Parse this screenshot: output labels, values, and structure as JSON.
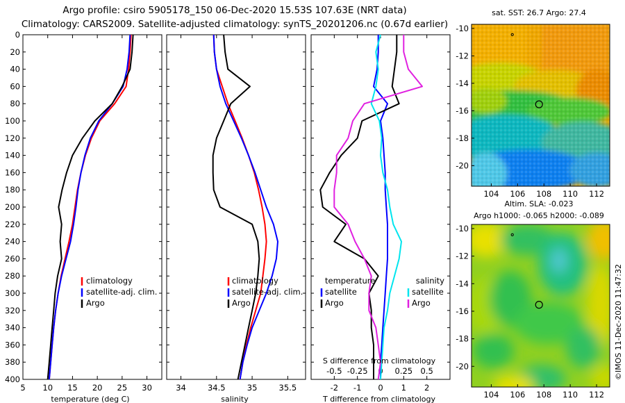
{
  "header": {
    "title_line1": "Argo profile: csiro 5905178_150 06-Dec-2020 15.53S 107.63E (NRT data)",
    "title_line2": "Climatology: CARS2009. Satellite-adjusted climatology: synTS_20201206.nc (0.67d earlier)"
  },
  "footer": {
    "credit": "©IMOS 11-Dec-2020 11:47:32"
  },
  "colors": {
    "climatology": "#ff0000",
    "satellite": "#0000ff",
    "argo": "#000000",
    "sat_salinity": "#00e5ee",
    "argo_salinity": "#e020e0"
  },
  "chart_data": [
    {
      "type": "line",
      "name": "temperature-profile",
      "xlabel": "temperature (deg C)",
      "xlim": [
        5,
        33
      ],
      "ylim": [
        400,
        0
      ],
      "xticks": [
        "5",
        "10",
        "15",
        "20",
        "25",
        "30"
      ],
      "yticks": [
        "0",
        "20",
        "40",
        "60",
        "80",
        "100",
        "120",
        "140",
        "160",
        "180",
        "200",
        "220",
        "240",
        "260",
        "280",
        "300",
        "320",
        "340",
        "360",
        "380",
        "400"
      ],
      "legend": [
        "climatology",
        "satellite-adj. clim.",
        "Argo"
      ],
      "depth": [
        0,
        20,
        40,
        60,
        80,
        100,
        120,
        140,
        160,
        180,
        200,
        220,
        240,
        260,
        280,
        300,
        320,
        340,
        360,
        380,
        400
      ],
      "series": [
        {
          "name": "climatology",
          "color": "#ff0000",
          "values": [
            26.8,
            26.6,
            26.3,
            25.8,
            23.5,
            20.5,
            18.8,
            17.6,
            16.7,
            16.0,
            15.5,
            15.0,
            14.3,
            13.5,
            12.7,
            12.1,
            11.6,
            11.2,
            10.9,
            10.6,
            10.3
          ]
        },
        {
          "name": "satellite-adj. clim.",
          "color": "#0000ff",
          "values": [
            26.6,
            26.4,
            26.0,
            25.2,
            23.0,
            20.3,
            18.6,
            17.5,
            16.7,
            16.1,
            15.7,
            15.2,
            14.6,
            13.7,
            12.8,
            12.1,
            11.6,
            11.2,
            10.9,
            10.6,
            10.3
          ]
        },
        {
          "name": "Argo",
          "color": "#000000",
          "values": [
            27.2,
            27.0,
            26.6,
            25.0,
            23.0,
            19.5,
            17.0,
            15.0,
            13.8,
            12.9,
            12.2,
            12.8,
            12.5,
            12.8,
            12.0,
            11.5,
            11.2,
            10.9,
            10.6,
            10.3,
            10.0
          ]
        }
      ]
    },
    {
      "type": "line",
      "name": "salinity-profile",
      "xlabel": "salinity",
      "xlim": [
        33.8,
        35.75
      ],
      "ylim": [
        400,
        0
      ],
      "xticks": [
        "34",
        "34.5",
        "35",
        "35.5"
      ],
      "legend": [
        "climatology",
        "satellite-adj. clim.",
        "Argo"
      ],
      "depth": [
        0,
        20,
        40,
        60,
        80,
        100,
        120,
        140,
        160,
        180,
        200,
        220,
        240,
        260,
        280,
        300,
        320,
        340,
        360,
        380,
        400
      ],
      "series": [
        {
          "name": "climatology",
          "color": "#ff0000",
          "values": [
            34.46,
            34.47,
            34.5,
            34.58,
            34.66,
            34.76,
            34.86,
            34.95,
            35.03,
            35.09,
            35.14,
            35.18,
            35.2,
            35.18,
            35.15,
            35.12,
            35.05,
            34.98,
            34.92,
            34.87,
            34.83
          ]
        },
        {
          "name": "satellite-adj. clim.",
          "color": "#0000ff",
          "values": [
            34.46,
            34.47,
            34.5,
            34.55,
            34.63,
            34.74,
            34.85,
            34.95,
            35.04,
            35.12,
            35.2,
            35.3,
            35.36,
            35.34,
            35.28,
            35.2,
            35.1,
            35.0,
            34.93,
            34.87,
            34.83
          ]
        },
        {
          "name": "Argo",
          "color": "#000000",
          "values": [
            34.6,
            34.62,
            34.66,
            34.97,
            34.7,
            34.6,
            34.5,
            34.45,
            34.45,
            34.46,
            34.55,
            35.0,
            35.08,
            35.1,
            35.08,
            35.05,
            35.0,
            34.95,
            34.9,
            34.85,
            34.8
          ]
        }
      ]
    },
    {
      "type": "line",
      "name": "difference-profile",
      "xlabel": "T difference from climatology",
      "xlabel_top": "S difference from climatology",
      "xlim": [
        -3,
        3
      ],
      "ylim": [
        400,
        0
      ],
      "xticks": [
        "-2",
        "-1",
        "0",
        "1",
        "2"
      ],
      "xticks_top": [
        "-0.5",
        "-0.25",
        "0",
        "0.25",
        "0.5"
      ],
      "legend_temperature": {
        "title": "temperature",
        "items": [
          "satellite",
          "Argo"
        ]
      },
      "legend_salinity": {
        "title": "salinity",
        "items": [
          "satellite",
          "Argo"
        ]
      },
      "depth": [
        0,
        20,
        40,
        60,
        80,
        100,
        120,
        140,
        160,
        180,
        200,
        220,
        240,
        260,
        280,
        300,
        320,
        340,
        360,
        380,
        400
      ],
      "series": [
        {
          "name": "temperature satellite",
          "color": "#0000ff",
          "values": [
            -0.1,
            -0.1,
            -0.15,
            -0.3,
            0.3,
            0.0,
            0.1,
            0.15,
            0.2,
            0.2,
            0.25,
            0.3,
            0.3,
            0.3,
            0.25,
            0.2,
            0.15,
            0.1,
            0.05,
            0.0,
            0.0
          ]
        },
        {
          "name": "temperature Argo",
          "color": "#000000",
          "values": [
            0.7,
            0.7,
            0.6,
            0.5,
            0.8,
            -0.8,
            -1.0,
            -1.7,
            -2.2,
            -2.6,
            -2.5,
            -1.5,
            -2.0,
            -0.7,
            -0.1,
            -0.5,
            -0.4,
            -0.4,
            -0.3,
            -0.3,
            -0.3
          ]
        },
        {
          "name": "salinity satellite",
          "color": "#00e5ee",
          "values": [
            0.0,
            -0.2,
            -0.1,
            -0.2,
            -0.4,
            -0.05,
            0.05,
            0.0,
            0.1,
            0.3,
            0.4,
            0.55,
            0.9,
            0.8,
            0.6,
            0.4,
            0.3,
            0.15,
            0.1,
            0.05,
            0.0
          ]
        },
        {
          "name": "salinity Argo",
          "color": "#e020e0",
          "values": [
            1.0,
            1.0,
            1.2,
            1.8,
            -0.7,
            -1.2,
            -1.4,
            -1.9,
            -1.9,
            -2.0,
            -2.0,
            -1.4,
            -1.1,
            -0.7,
            -0.4,
            -0.5,
            -0.5,
            -0.2,
            -0.1,
            0.0,
            -0.1
          ]
        }
      ]
    },
    {
      "type": "heatmap",
      "name": "sst-map",
      "title": "sat. SST: 26.7 Argo: 27.4",
      "xlim": [
        102.5,
        113
      ],
      "ylim": [
        -21.5,
        -9.7
      ],
      "xticks": [
        "104",
        "106",
        "108",
        "110",
        "112"
      ],
      "yticks": [
        "-10",
        "-12",
        "-14",
        "-16",
        "-18",
        "-20"
      ],
      "argo_marker": {
        "lon": 107.63,
        "lat": -15.53
      }
    },
    {
      "type": "heatmap",
      "name": "sla-map",
      "title_line1": "Altim. SLA: -0.023",
      "title_line2": "Argo h1000: -0.065 h2000: -0.089",
      "xlim": [
        102.5,
        113
      ],
      "ylim": [
        -21.5,
        -9.7
      ],
      "xticks": [
        "104",
        "106",
        "108",
        "110",
        "112"
      ],
      "yticks": [
        "-10",
        "-12",
        "-14",
        "-16",
        "-18",
        "-20"
      ],
      "argo_marker": {
        "lon": 107.63,
        "lat": -15.53
      }
    }
  ]
}
